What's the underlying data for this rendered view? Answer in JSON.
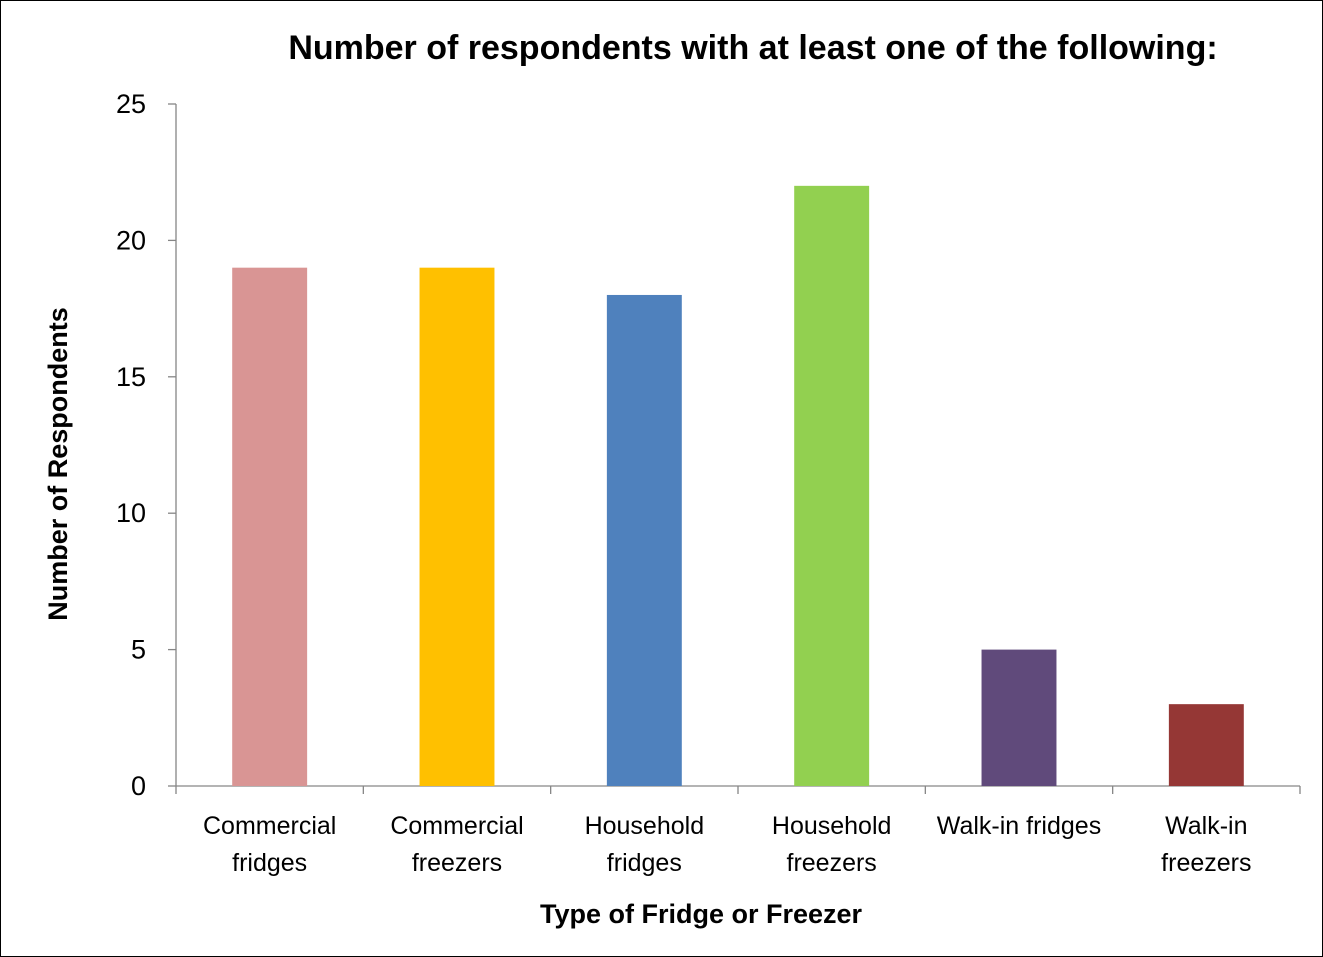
{
  "chart_data": {
    "type": "bar",
    "title": "Number of respondents with at least one of the following:",
    "xlabel": "Type of Fridge or Freezer",
    "ylabel": "Number of Respondents",
    "ylim": [
      0,
      25
    ],
    "yticks": [
      0,
      5,
      10,
      15,
      20,
      25
    ],
    "grid": false,
    "categories": [
      [
        "Commercial",
        "fridges"
      ],
      [
        "Commercial",
        "freezers"
      ],
      [
        "Household",
        "fridges"
      ],
      [
        "Household",
        "freezers"
      ],
      [
        "Walk-in fridges"
      ],
      [
        "Walk-in",
        "freezers"
      ]
    ],
    "values": [
      19,
      19,
      18,
      22,
      5,
      3
    ],
    "colors": [
      "#D99594",
      "#FFC000",
      "#4F81BD",
      "#92D050",
      "#604A7B",
      "#953735"
    ]
  }
}
